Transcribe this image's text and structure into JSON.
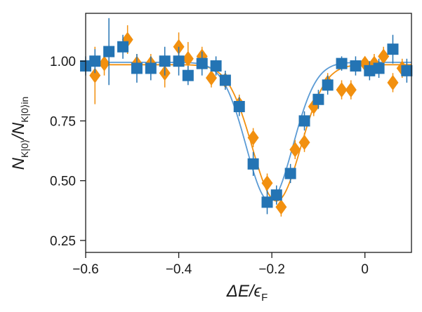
{
  "chart_data": {
    "type": "scatter",
    "xlabel": {
      "main": "ΔE/ϵ",
      "sub": "F"
    },
    "ylabel": {
      "part1": "N",
      "sub1": "K|0⟩",
      "part2": "/N",
      "sub2": "K|0⟩in"
    },
    "xlim": [
      -0.6,
      0.1
    ],
    "ylim": [
      0.2,
      1.2
    ],
    "xticks": [
      -0.6,
      -0.4,
      -0.2,
      0
    ],
    "xtick_labels": [
      "−0.6",
      "−0.4",
      "−0.2",
      "0"
    ],
    "yticks": [
      0.25,
      0.5,
      0.75,
      1.0
    ],
    "ytick_labels": [
      "0.25",
      "0.50",
      "0.75",
      "1.00"
    ],
    "grid": false,
    "series": [
      {
        "marker": "diamond",
        "color": "#f2900f",
        "points": [
          {
            "x": -0.58,
            "y": 0.94,
            "err": 0.12
          },
          {
            "x": -0.56,
            "y": 0.99,
            "err": 0.05
          },
          {
            "x": -0.51,
            "y": 1.09,
            "err": 0.06
          },
          {
            "x": -0.49,
            "y": 0.99,
            "err": 0.04
          },
          {
            "x": -0.46,
            "y": 0.99,
            "err": 0.04
          },
          {
            "x": -0.43,
            "y": 0.95,
            "err": 0.06
          },
          {
            "x": -0.4,
            "y": 1.06,
            "err": 0.06
          },
          {
            "x": -0.38,
            "y": 1.01,
            "err": 0.07
          },
          {
            "x": -0.35,
            "y": 1.02,
            "err": 0.04
          },
          {
            "x": -0.33,
            "y": 0.93,
            "err": 0.04
          },
          {
            "x": -0.3,
            "y": 0.92,
            "err": 0.03
          },
          {
            "x": -0.27,
            "y": 0.82,
            "err": 0.04
          },
          {
            "x": -0.24,
            "y": 0.68,
            "err": 0.04
          },
          {
            "x": -0.21,
            "y": 0.49,
            "err": 0.04
          },
          {
            "x": -0.18,
            "y": 0.39,
            "err": 0.04
          },
          {
            "x": -0.15,
            "y": 0.63,
            "err": 0.04
          },
          {
            "x": -0.13,
            "y": 0.66,
            "err": 0.04
          },
          {
            "x": -0.11,
            "y": 0.81,
            "err": 0.04
          },
          {
            "x": -0.08,
            "y": 0.91,
            "err": 0.04
          },
          {
            "x": -0.05,
            "y": 0.88,
            "err": 0.04
          },
          {
            "x": -0.03,
            "y": 0.88,
            "err": 0.04
          },
          {
            "x": 0.0,
            "y": 0.99,
            "err": 0.03
          },
          {
            "x": 0.02,
            "y": 0.99,
            "err": 0.04
          },
          {
            "x": 0.04,
            "y": 1.02,
            "err": 0.04
          },
          {
            "x": 0.06,
            "y": 0.91,
            "err": 0.04
          },
          {
            "x": 0.08,
            "y": 0.97,
            "err": 0.04
          }
        ]
      },
      {
        "marker": "square",
        "color": "#2474b4",
        "points": [
          {
            "x": -0.6,
            "y": 0.98,
            "err": 0.04
          },
          {
            "x": -0.58,
            "y": 1.0,
            "err": 0.05
          },
          {
            "x": -0.55,
            "y": 1.04,
            "err": 0.14
          },
          {
            "x": -0.52,
            "y": 1.06,
            "err": 0.05
          },
          {
            "x": -0.49,
            "y": 0.97,
            "err": 0.06
          },
          {
            "x": -0.46,
            "y": 0.97,
            "err": 0.05
          },
          {
            "x": -0.43,
            "y": 1.0,
            "err": 0.06
          },
          {
            "x": -0.4,
            "y": 1.0,
            "err": 0.06
          },
          {
            "x": -0.38,
            "y": 0.94,
            "err": 0.04
          },
          {
            "x": -0.35,
            "y": 0.99,
            "err": 0.05
          },
          {
            "x": -0.32,
            "y": 0.98,
            "err": 0.04
          },
          {
            "x": -0.3,
            "y": 0.92,
            "err": 0.04
          },
          {
            "x": -0.27,
            "y": 0.81,
            "err": 0.04
          },
          {
            "x": -0.24,
            "y": 0.57,
            "err": 0.05
          },
          {
            "x": -0.21,
            "y": 0.41,
            "err": 0.05
          },
          {
            "x": -0.19,
            "y": 0.44,
            "err": 0.04
          },
          {
            "x": -0.16,
            "y": 0.53,
            "err": 0.04
          },
          {
            "x": -0.13,
            "y": 0.75,
            "err": 0.04
          },
          {
            "x": -0.1,
            "y": 0.84,
            "err": 0.04
          },
          {
            "x": -0.08,
            "y": 0.9,
            "err": 0.04
          },
          {
            "x": -0.05,
            "y": 0.99,
            "err": 0.03
          },
          {
            "x": -0.02,
            "y": 0.98,
            "err": 0.04
          },
          {
            "x": 0.01,
            "y": 0.96,
            "err": 0.04
          },
          {
            "x": 0.03,
            "y": 0.97,
            "err": 0.04
          },
          {
            "x": 0.06,
            "y": 1.05,
            "err": 0.06
          },
          {
            "x": 0.09,
            "y": 0.96,
            "err": 0.05
          }
        ]
      }
    ],
    "fits": [
      {
        "color": "#f2900f",
        "baseline": 0.985,
        "depth": 0.57,
        "center": -0.19,
        "width": 0.052
      },
      {
        "color": "#5b9bd5",
        "baseline": 0.995,
        "depth": 0.58,
        "center": -0.205,
        "width": 0.05
      }
    ]
  }
}
